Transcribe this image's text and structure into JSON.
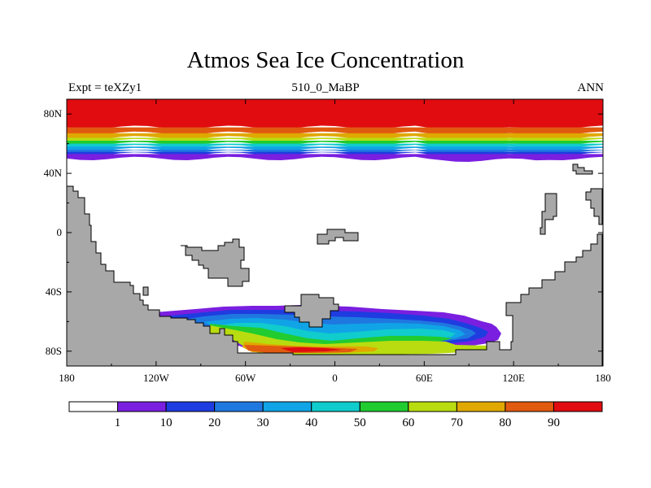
{
  "chart_data": {
    "type": "heatmap",
    "title": "Atmos Sea Ice Concentration",
    "subtitle_left": "Expt = teXZy1",
    "subtitle_center": "510_0_MaBP",
    "subtitle_right": "ANN",
    "xlim": [
      -180,
      180
    ],
    "ylim": [
      -90,
      90
    ],
    "x_ticks": [
      {
        "value": -180,
        "label": "180"
      },
      {
        "value": -120,
        "label": "120W"
      },
      {
        "value": -60,
        "label": "60W"
      },
      {
        "value": 0,
        "label": "0"
      },
      {
        "value": 60,
        "label": "60E"
      },
      {
        "value": 120,
        "label": "120E"
      },
      {
        "value": 180,
        "label": "180"
      }
    ],
    "y_ticks": [
      {
        "value": 80,
        "label": "80N"
      },
      {
        "value": 40,
        "label": "40N"
      },
      {
        "value": 0,
        "label": "0"
      },
      {
        "value": -40,
        "label": "40S"
      },
      {
        "value": -80,
        "label": "80S"
      }
    ],
    "colorbar": {
      "colors": [
        "#ffffff",
        "#7a1fe0",
        "#1f3ce0",
        "#1f78e0",
        "#10a4e6",
        "#10cccc",
        "#20cc30",
        "#b8dc10",
        "#e0a800",
        "#e05a10",
        "#e00c10"
      ],
      "labels": [
        "1",
        "10",
        "20",
        "30",
        "40",
        "50",
        "60",
        "70",
        "80",
        "90"
      ]
    },
    "arctic_bands": [
      {
        "lat_top": 90,
        "lat_bottom": 71,
        "color_index": 10
      },
      {
        "lat_top": 71,
        "lat_bottom": 67,
        "color_index": 9
      },
      {
        "lat_top": 67,
        "lat_bottom": 64,
        "color_index": 8
      },
      {
        "lat_top": 64,
        "lat_bottom": 62,
        "color_index": 7
      },
      {
        "lat_top": 62,
        "lat_bottom": 60,
        "color_index": 6
      },
      {
        "lat_top": 60,
        "lat_bottom": 58,
        "color_index": 5
      },
      {
        "lat_top": 58,
        "lat_bottom": 56,
        "color_index": 4
      },
      {
        "lat_top": 56,
        "lat_bottom": 54.5,
        "color_index": 3
      },
      {
        "lat_top": 54.5,
        "lat_bottom": 53,
        "color_index": 2
      },
      {
        "lat_top": 53,
        "lat_bottom": 50,
        "color_index": 1
      }
    ],
    "southern_ice_lon_range": [
      -130,
      120
    ],
    "southern_ice_edge_lat": -50
  },
  "colors": {
    "land": "#a8a8a8",
    "ocean": "#ffffff"
  }
}
